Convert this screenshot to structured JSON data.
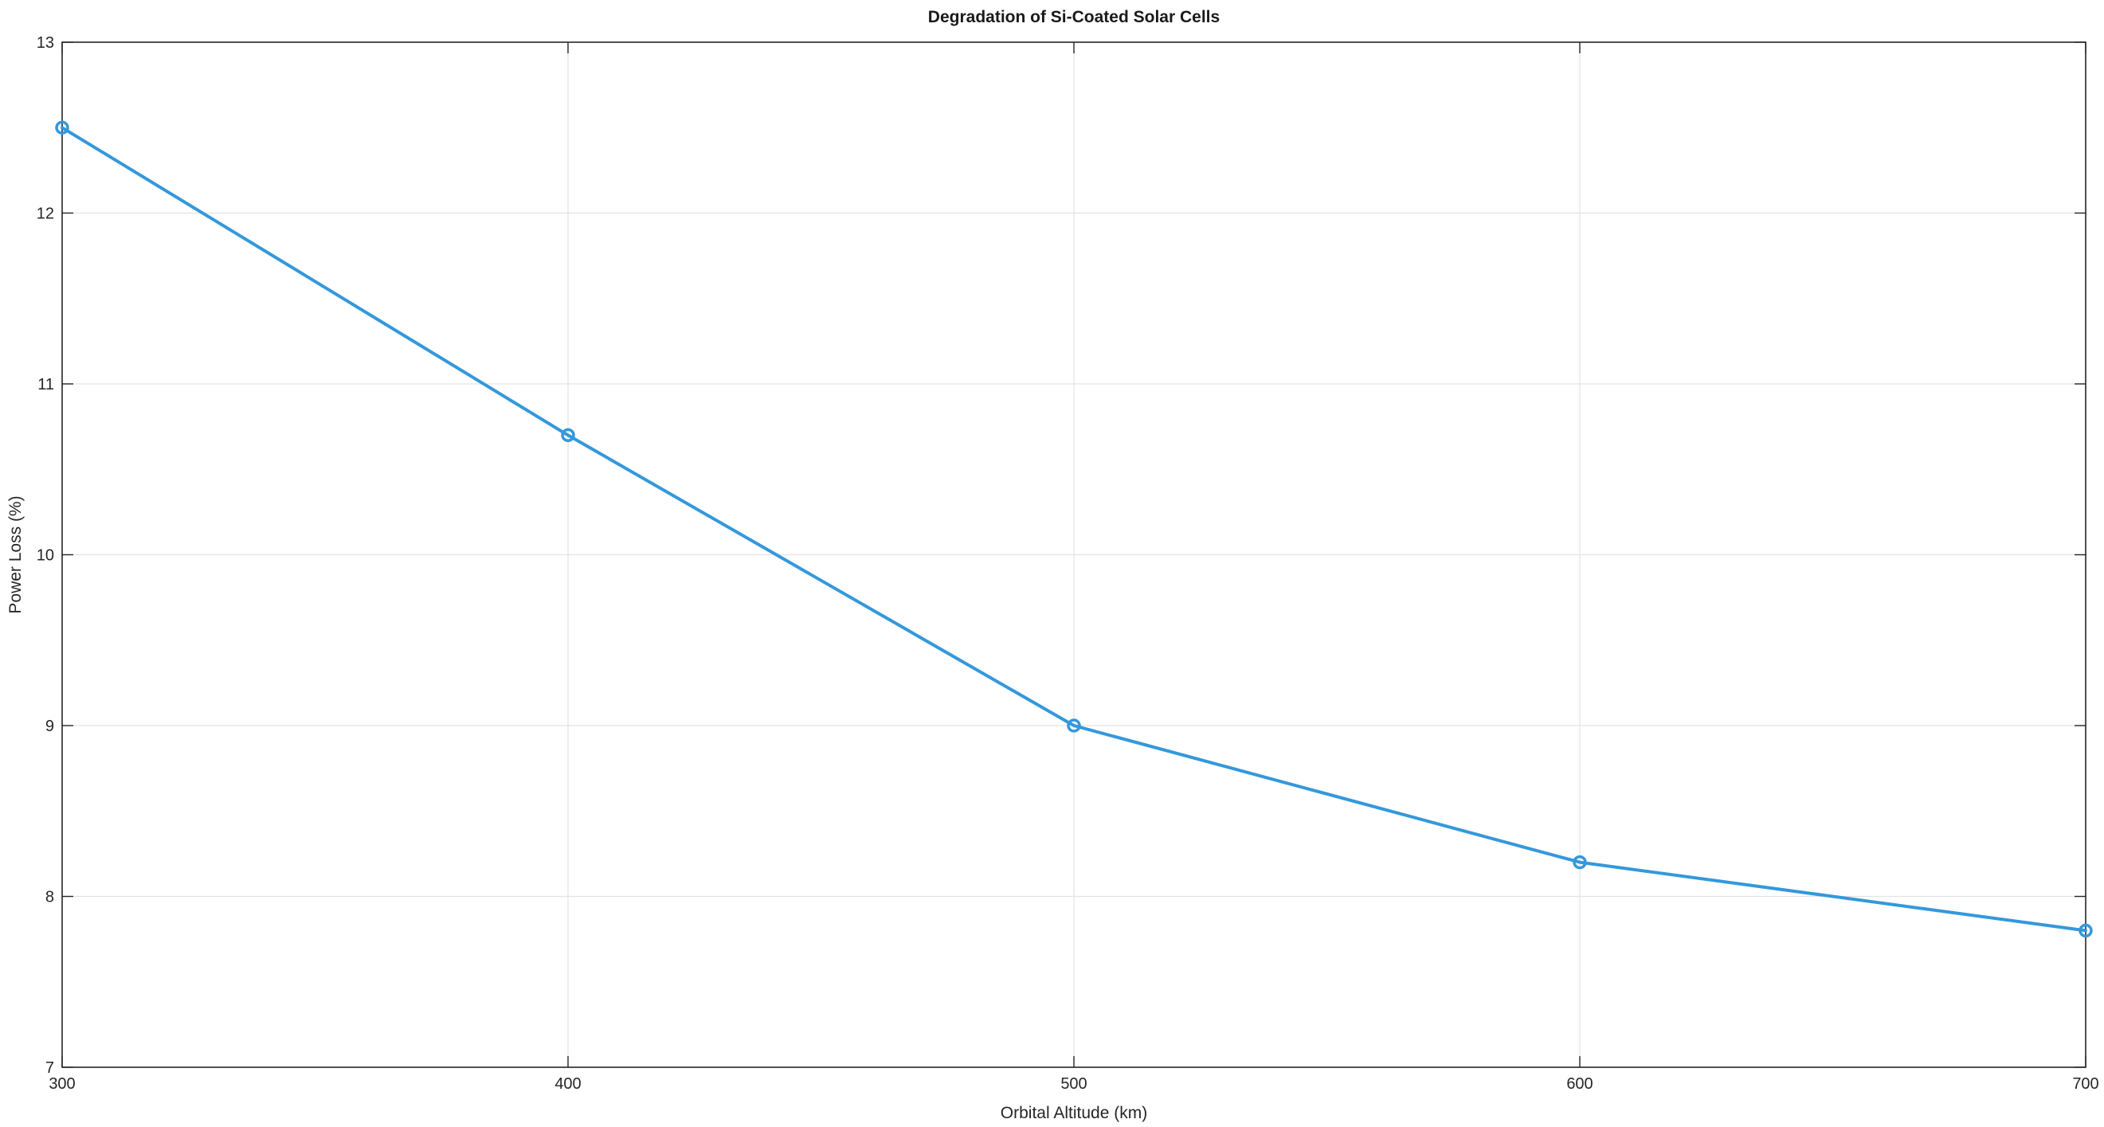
{
  "chart_data": {
    "type": "line",
    "title": "Degradation of Si-Coated Solar Cells",
    "xlabel": "Orbital Altitude (km)",
    "ylabel": "Power Loss (%)",
    "xlim": [
      300,
      700
    ],
    "ylim": [
      7,
      13
    ],
    "xticks": [
      300,
      400,
      500,
      600,
      700
    ],
    "yticks": [
      7,
      8,
      9,
      10,
      11,
      12,
      13
    ],
    "grid": true,
    "series": [
      {
        "x": [
          300,
          400,
          500,
          600,
          700
        ],
        "y": [
          12.5,
          10.7,
          9.0,
          8.2,
          7.8
        ],
        "color": "#3498db",
        "marker": "circle"
      }
    ]
  }
}
